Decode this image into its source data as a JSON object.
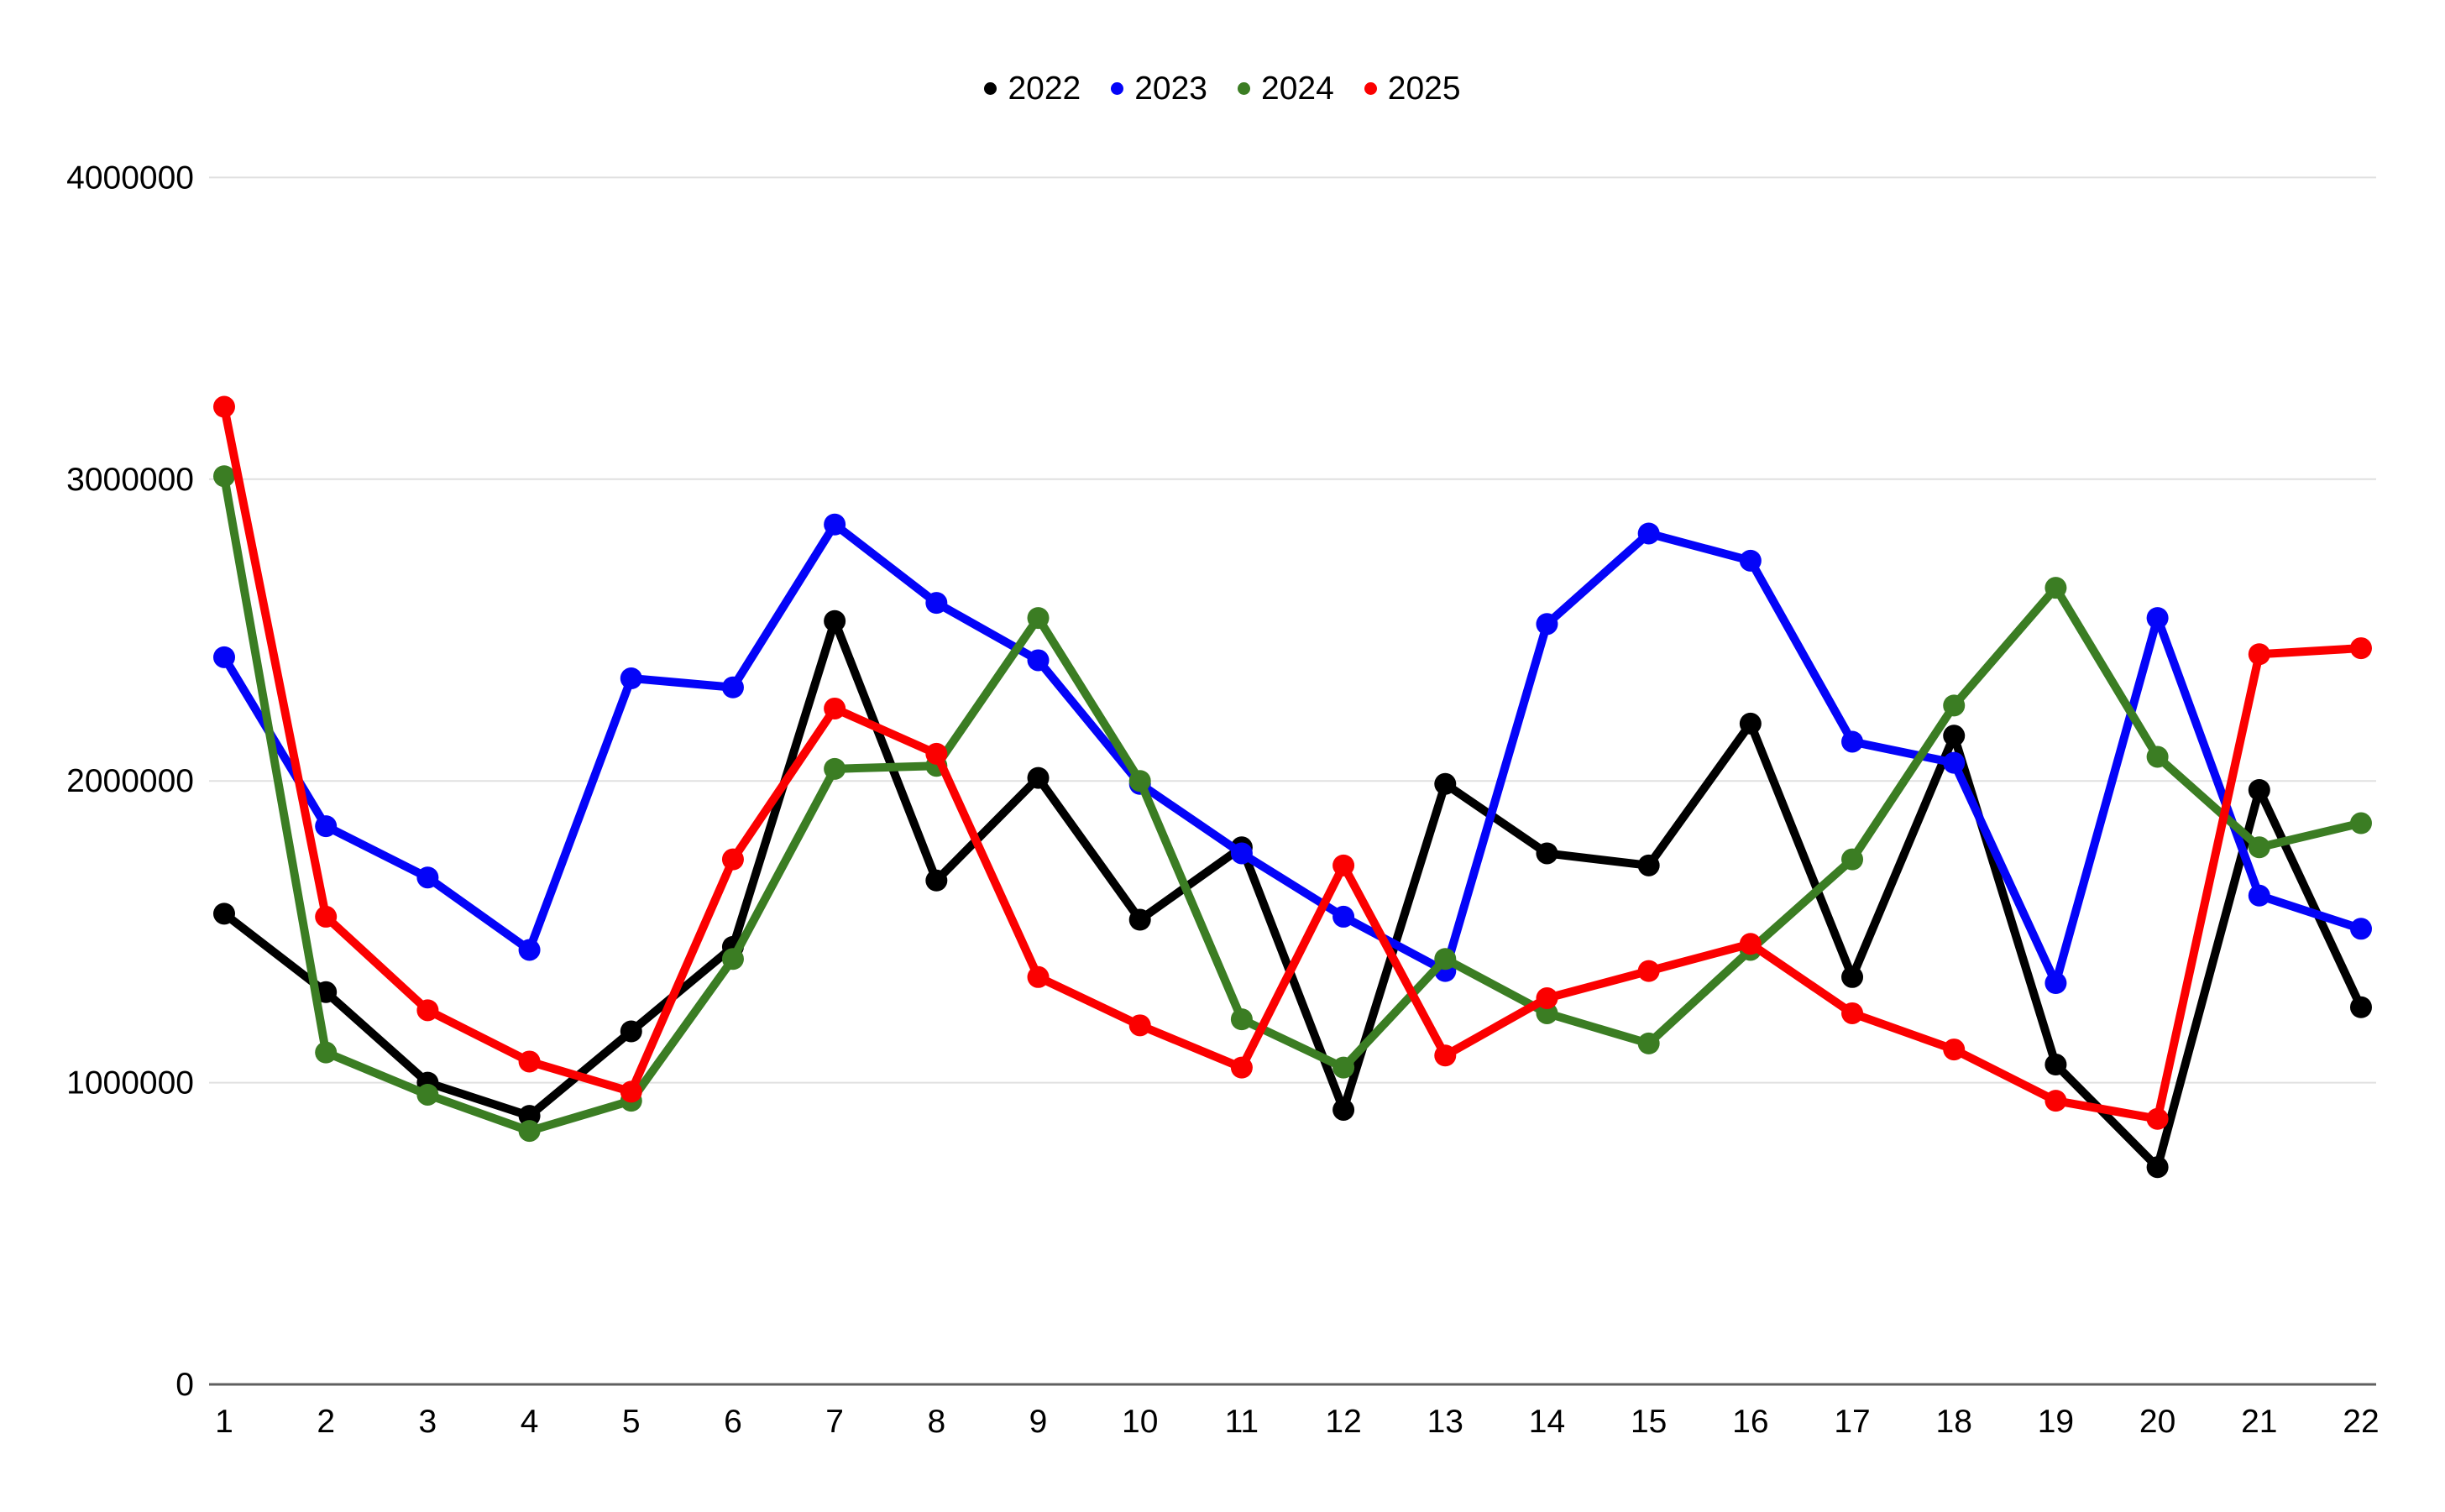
{
  "chart": {
    "background": "#ffffff",
    "grid_color": "#e0e0e0",
    "axis_line_color": "#5f5f5f",
    "text_color": "#000000",
    "legend_position": "top-center"
  },
  "chart_data": {
    "type": "line",
    "title": "",
    "xlabel": "",
    "ylabel": "",
    "x": [
      1,
      2,
      3,
      4,
      5,
      6,
      7,
      8,
      9,
      10,
      11,
      12,
      13,
      14,
      15,
      16,
      17,
      18,
      19,
      20,
      21,
      22
    ],
    "x_tick_labels": [
      "1",
      "2",
      "3",
      "4",
      "5",
      "6",
      "7",
      "8",
      "9",
      "10",
      "11",
      "12",
      "13",
      "14",
      "15",
      "16",
      "17",
      "18",
      "19",
      "20",
      "21",
      "22"
    ],
    "ylim": [
      0,
      4000000
    ],
    "yticks": [
      0,
      1000000,
      2000000,
      3000000,
      4000000
    ],
    "y_tick_labels": [
      "0",
      "1000000",
      "2000000",
      "3000000",
      "4000000"
    ],
    "grid": true,
    "legend_position": "top-center",
    "series": [
      {
        "name": "2022",
        "color": "#000000",
        "values": [
          1560000,
          1300000,
          1000000,
          890000,
          1170000,
          1450000,
          2530000,
          1670000,
          2010000,
          1540000,
          1780000,
          910000,
          1990000,
          1760000,
          1720000,
          2190000,
          1350000,
          2150000,
          1060000,
          720000,
          1970000,
          1250000
        ]
      },
      {
        "name": "2023",
        "color": "#0404f8",
        "values": [
          2410000,
          1850000,
          1680000,
          1440000,
          2340000,
          2310000,
          2850000,
          2590000,
          2400000,
          1990000,
          1760000,
          1550000,
          1370000,
          2520000,
          2820000,
          2730000,
          2130000,
          2060000,
          1330000,
          2540000,
          1620000,
          1510000
        ]
      },
      {
        "name": "2024",
        "color": "#3b7d23",
        "values": [
          3010000,
          1100000,
          960000,
          840000,
          940000,
          1410000,
          2040000,
          2050000,
          2540000,
          2000000,
          1210000,
          1050000,
          1410000,
          1230000,
          1130000,
          1440000,
          1740000,
          2250000,
          2640000,
          2080000,
          1780000,
          1860000
        ]
      },
      {
        "name": "2025",
        "color": "#fb0000",
        "values": [
          3240000,
          1550000,
          1240000,
          1070000,
          970000,
          1740000,
          2240000,
          2090000,
          1350000,
          1190000,
          1050000,
          1720000,
          1090000,
          1280000,
          1370000,
          1460000,
          1230000,
          1110000,
          940000,
          880000,
          2420000,
          2440000
        ]
      }
    ]
  }
}
